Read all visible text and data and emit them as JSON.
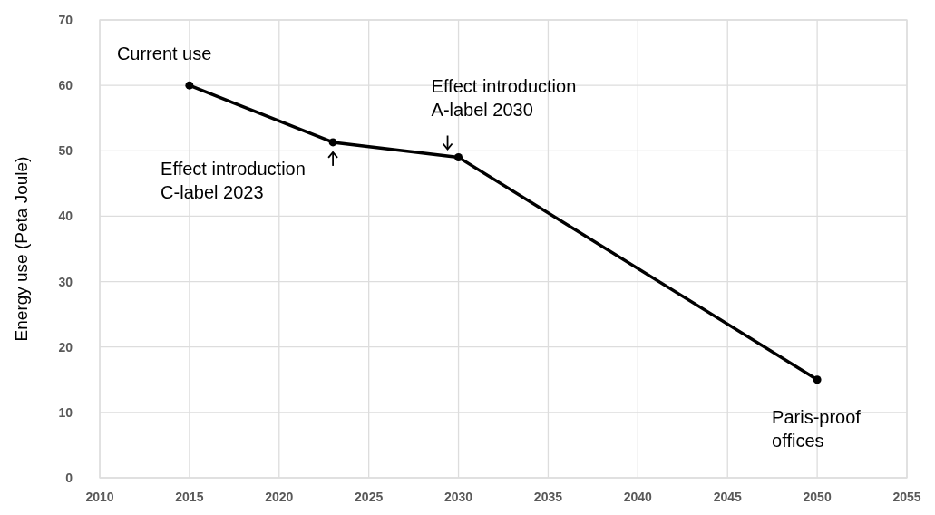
{
  "chart_data": {
    "type": "line",
    "ylabel": "Energy use (Peta Joule)",
    "x": [
      2015,
      2023,
      2030,
      2050
    ],
    "series": [
      {
        "color": "#000000",
        "values": [
          60,
          51.3,
          49,
          15
        ]
      }
    ],
    "xlim": [
      2010,
      2055
    ],
    "xticks": [
      2010,
      2015,
      2020,
      2025,
      2030,
      2035,
      2040,
      2045,
      2050,
      2055
    ],
    "ylim": [
      0,
      70
    ],
    "yticks": [
      0,
      10,
      20,
      30,
      40,
      50,
      60,
      70
    ],
    "grid": true,
    "marker": "circle",
    "line_style": "solid",
    "annotations": [
      {
        "text": "Current use",
        "x": 2015,
        "y": 60
      },
      {
        "text": "Effect introduction\nC-label 2023",
        "x": 2023,
        "y": 51.3
      },
      {
        "text": "Effect introduction\nA-label 2030",
        "x": 2030,
        "y": 49
      },
      {
        "text": "Paris-proof\noffices",
        "x": 2050,
        "y": 15
      }
    ]
  }
}
